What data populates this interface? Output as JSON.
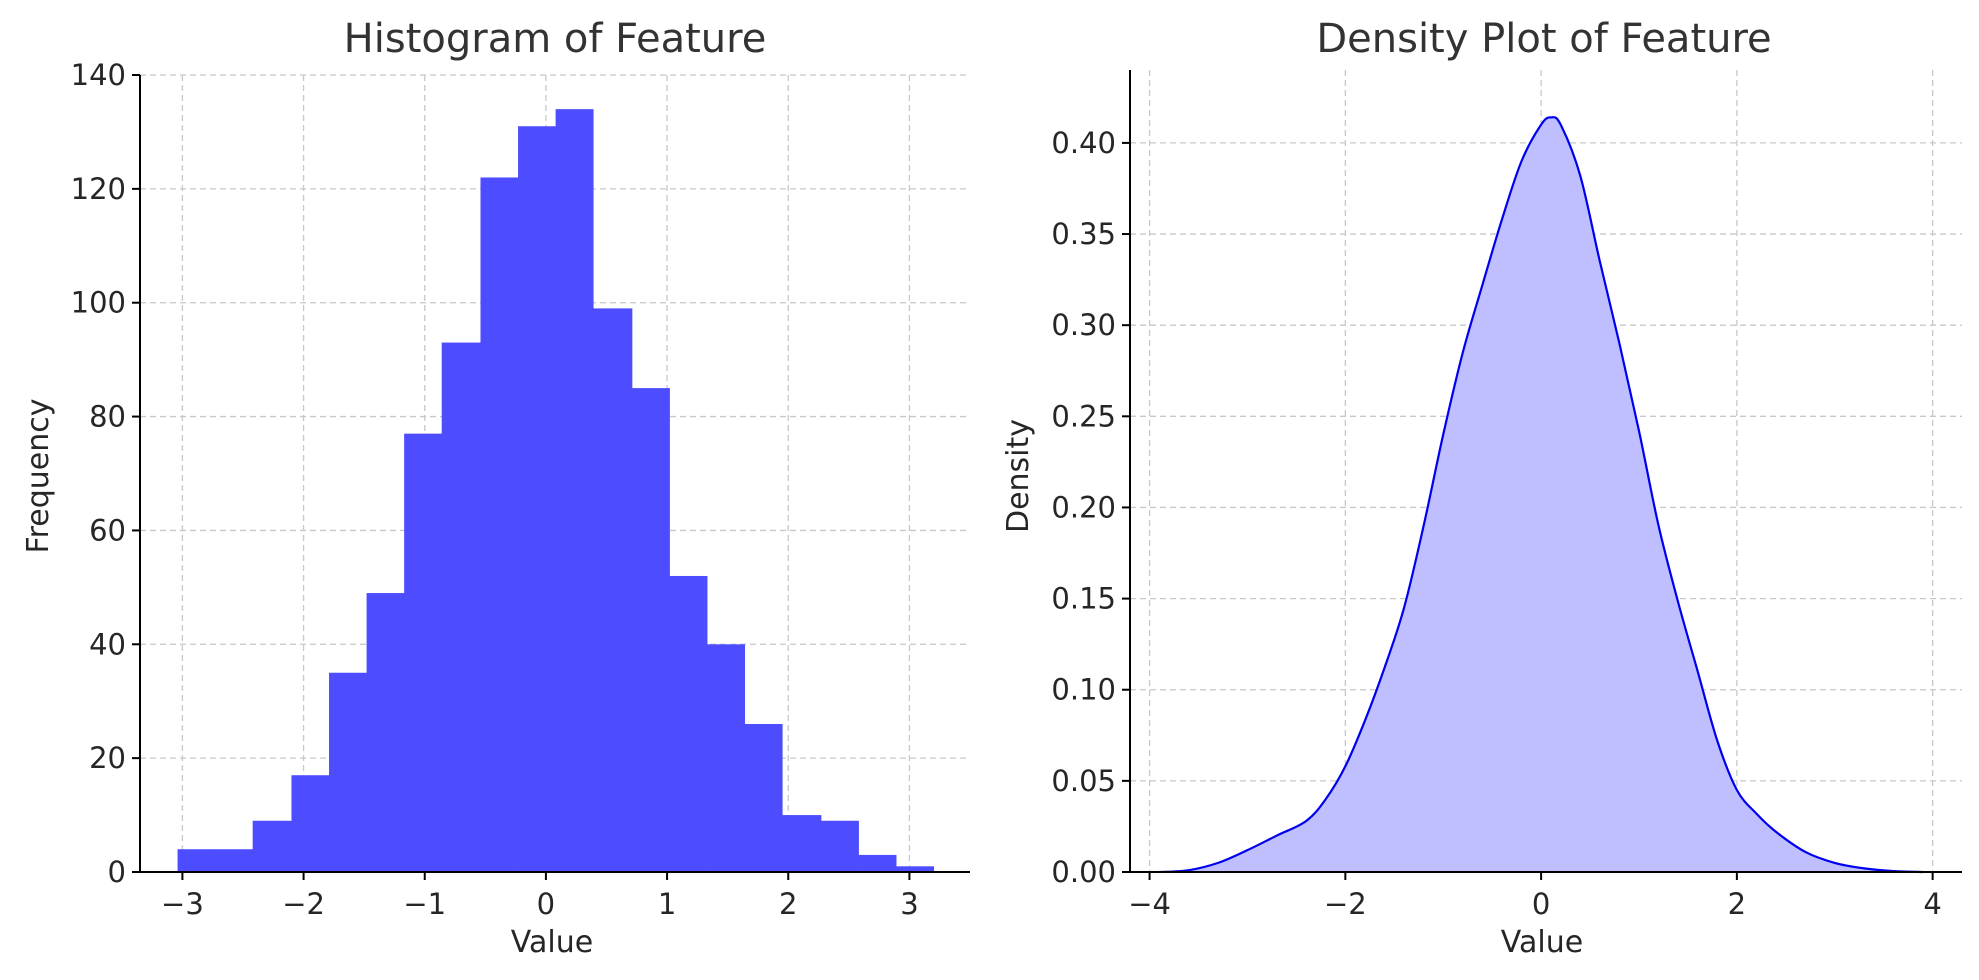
{
  "chart_data": [
    {
      "type": "bar",
      "title": "Histogram of Feature",
      "xlabel": "Value",
      "ylabel": "Frequency",
      "xlim": [
        -3.35,
        3.5
      ],
      "ylim": [
        0,
        140
      ],
      "xticks": [
        -3,
        -2,
        -1,
        0,
        1,
        2,
        3
      ],
      "yticks": [
        0,
        20,
        40,
        60,
        80,
        100,
        120,
        140
      ],
      "grid": true,
      "bar_color": "#4d4dff",
      "bin_edges": [
        -3.04,
        -2.73,
        -2.42,
        -2.1,
        -1.79,
        -1.48,
        -1.17,
        -0.86,
        -0.54,
        -0.23,
        0.08,
        0.39,
        0.71,
        1.02,
        1.33,
        1.64,
        1.95,
        2.27,
        2.58,
        2.89,
        3.2
      ],
      "values": [
        4,
        4,
        9,
        17,
        35,
        49,
        77,
        93,
        122,
        131,
        134,
        99,
        85,
        52,
        40,
        26,
        10,
        9,
        3,
        1
      ]
    },
    {
      "type": "area",
      "title": "Density Plot of Feature",
      "xlabel": "Value",
      "ylabel": "Density",
      "xlim": [
        -4.2,
        4.3
      ],
      "ylim": [
        0,
        0.44
      ],
      "xticks": [
        -4,
        -2,
        0,
        2,
        4
      ],
      "yticks": [
        0.0,
        0.05,
        0.1,
        0.15,
        0.2,
        0.25,
        0.3,
        0.35,
        0.4
      ],
      "grid": true,
      "line_color": "#0000ee",
      "fill_color": "#bfbfff",
      "x": [
        -3.9,
        -3.6,
        -3.3,
        -3.0,
        -2.7,
        -2.4,
        -2.2,
        -2.0,
        -1.8,
        -1.6,
        -1.4,
        -1.2,
        -1.0,
        -0.8,
        -0.6,
        -0.4,
        -0.2,
        0.0,
        0.1,
        0.2,
        0.4,
        0.6,
        0.8,
        1.0,
        1.2,
        1.4,
        1.6,
        1.8,
        2.0,
        2.2,
        2.4,
        2.7,
        3.0,
        3.3,
        3.6,
        3.9
      ],
      "y": [
        0.0,
        0.001,
        0.005,
        0.012,
        0.02,
        0.028,
        0.04,
        0.058,
        0.083,
        0.112,
        0.145,
        0.19,
        0.24,
        0.285,
        0.322,
        0.358,
        0.39,
        0.41,
        0.414,
        0.41,
        0.382,
        0.335,
        0.29,
        0.242,
        0.19,
        0.148,
        0.11,
        0.072,
        0.045,
        0.032,
        0.022,
        0.011,
        0.005,
        0.002,
        0.0005,
        0.0
      ]
    }
  ]
}
